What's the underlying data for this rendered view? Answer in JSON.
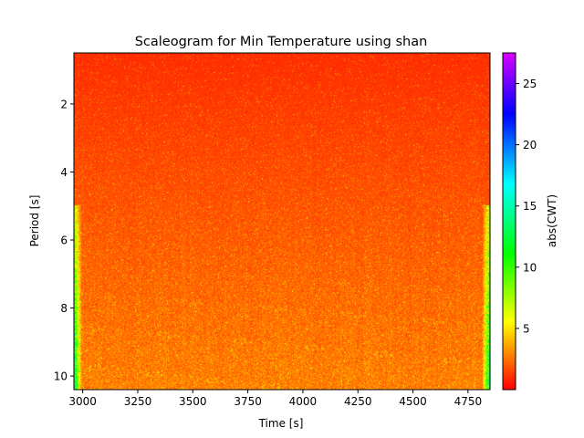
{
  "chart_data": {
    "type": "heatmap",
    "title": "Scaleogram for Min Temperature using shan",
    "xlabel": "Time [s]",
    "ylabel": "Period [s]",
    "xlim": [
      2960,
      4850
    ],
    "ylim": [
      10.4,
      0.5
    ],
    "y_inverted": true,
    "x_ticks": [
      3000,
      3250,
      3500,
      3750,
      4000,
      4250,
      4500,
      4750
    ],
    "x_tick_labels": [
      "3000",
      "3250",
      "3500",
      "3750",
      "4000",
      "4250",
      "4500",
      "4750"
    ],
    "y_ticks": [
      2,
      4,
      6,
      8,
      10
    ],
    "y_tick_labels": [
      "2",
      "4",
      "6",
      "8",
      "10"
    ],
    "colormap": "gist_rainbow_r",
    "value_range": [
      0,
      27.5
    ],
    "colorbar": {
      "label": "abs(CWT)",
      "ticks": [
        5,
        10,
        15,
        20,
        25
      ],
      "tick_labels": [
        "5",
        "10",
        "15",
        "20",
        "25"
      ]
    },
    "dominant_value_range": [
      0.5,
      4.5
    ],
    "grid": false
  }
}
